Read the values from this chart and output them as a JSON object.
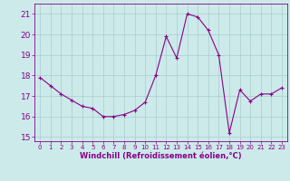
{
  "x": [
    0,
    1,
    2,
    3,
    4,
    5,
    6,
    7,
    8,
    9,
    10,
    11,
    12,
    13,
    14,
    15,
    16,
    17,
    18,
    19,
    20,
    21,
    22,
    23
  ],
  "y": [
    17.9,
    17.5,
    17.1,
    16.8,
    16.5,
    16.4,
    16.0,
    16.0,
    16.1,
    16.3,
    16.7,
    18.0,
    19.9,
    18.85,
    21.0,
    20.85,
    20.2,
    19.0,
    15.2,
    17.3,
    16.75,
    17.1,
    17.1,
    17.4
  ],
  "line_color": "#880088",
  "marker": "P",
  "marker_size": 3,
  "bg_color": "#cceaea",
  "grid_color": "#aacccc",
  "xlabel": "Windchill (Refroidissement éolien,°C)",
  "xlabel_color": "#880088",
  "tick_color": "#880088",
  "ylim": [
    14.8,
    21.5
  ],
  "xlim": [
    -0.5,
    23.5
  ],
  "yticks": [
    15,
    16,
    17,
    18,
    19,
    20,
    21
  ],
  "xticks": [
    0,
    1,
    2,
    3,
    4,
    5,
    6,
    7,
    8,
    9,
    10,
    11,
    12,
    13,
    14,
    15,
    16,
    17,
    18,
    19,
    20,
    21,
    22,
    23
  ],
  "figsize": [
    3.2,
    2.0
  ],
  "dpi": 100
}
